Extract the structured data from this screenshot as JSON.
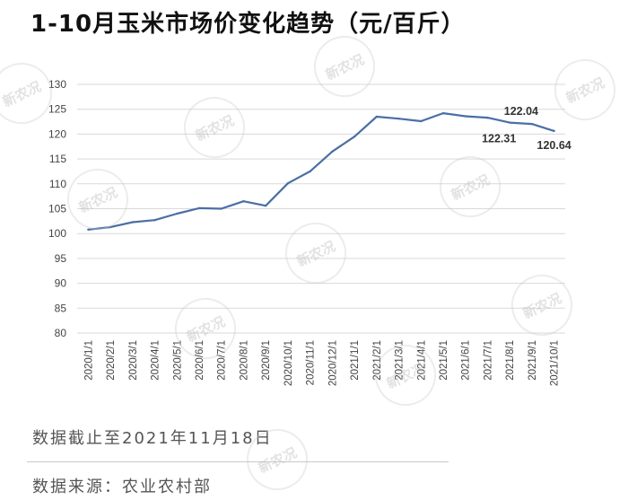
{
  "title": "1-10月玉米市场价变化趋势（元/百斤）",
  "footer": {
    "cutoff": "数据截止至2021年11月18日",
    "source": "数据来源：农业农村部"
  },
  "watermark_text": "新农况",
  "colors": {
    "line": "#4a6fa5",
    "grid": "#d9d9d9",
    "tick_text": "#444444"
  },
  "chart_data": {
    "type": "line",
    "title": "1-10月玉米市场价变化趋势（元/百斤）",
    "xlabel": "",
    "ylabel": "",
    "ylim": [
      80,
      130
    ],
    "yticks": [
      80,
      85,
      90,
      95,
      100,
      105,
      110,
      115,
      120,
      125,
      130
    ],
    "grid": true,
    "categories": [
      "2020/1/1",
      "2020/2/1",
      "2020/3/1",
      "2020/4/1",
      "2020/5/1",
      "2020/6/1",
      "2020/7/1",
      "2020/8/1",
      "2020/9/1",
      "2020/10/1",
      "2020/11/1",
      "2020/12/1",
      "2021/1/1",
      "2021/2/1",
      "2021/3/1",
      "2021/4/1",
      "2021/5/1",
      "2021/6/1",
      "2021/7/1",
      "2021/8/1",
      "2021/9/1",
      "2021/10/1"
    ],
    "series": [
      {
        "values": [
          100.8,
          101.3,
          102.3,
          102.7,
          104.0,
          105.1,
          105.0,
          106.5,
          105.6,
          110.1,
          112.5,
          116.5,
          119.5,
          123.5,
          123.1,
          122.6,
          124.2,
          123.6,
          123.3,
          122.31,
          122.04,
          120.64
        ]
      }
    ],
    "annotations": [
      {
        "category": "2021/8/1",
        "label": "122.31"
      },
      {
        "category": "2021/9/1",
        "label": "122.04"
      },
      {
        "category": "2021/10/1",
        "label": "120.64"
      }
    ]
  }
}
